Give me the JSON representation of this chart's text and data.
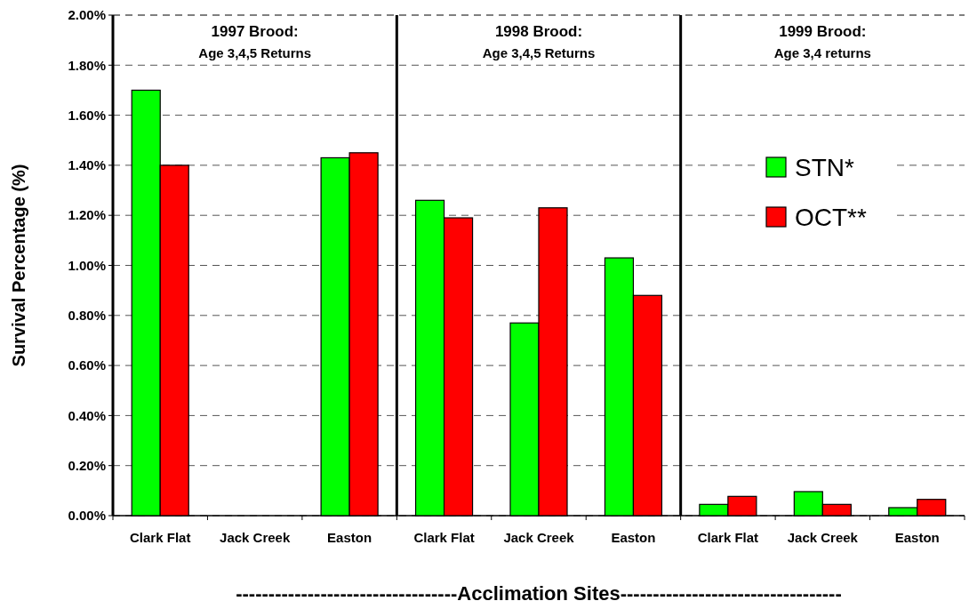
{
  "chart_data": {
    "type": "bar",
    "ylabel": "Survival Percentage (%)",
    "xlabel": "----------------------------------Acclimation Sites----------------------------------",
    "categories": [
      "Clark Flat",
      "Jack Creek",
      "Easton",
      "Clark Flat",
      "Jack Creek",
      "Easton",
      "Clark Flat",
      "Jack Creek",
      "Easton"
    ],
    "series": [
      {
        "name": "STN*",
        "color": "#00ff00",
        "values": [
          1.7,
          null,
          1.43,
          1.26,
          0.77,
          1.03,
          0.045,
          0.096,
          0.032
        ]
      },
      {
        "name": "OCT**",
        "color": "#ff0000",
        "values": [
          1.4,
          null,
          1.45,
          1.19,
          1.23,
          0.88,
          0.077,
          0.045,
          0.065
        ]
      }
    ],
    "ylim": [
      0,
      2
    ],
    "yticks": [
      {
        "value": 0,
        "label": "0.00%"
      },
      {
        "value": 0.2,
        "label": "0.20%"
      },
      {
        "value": 0.4,
        "label": "0.40%"
      },
      {
        "value": 0.6,
        "label": "0.60%"
      },
      {
        "value": 0.8,
        "label": "0.80%"
      },
      {
        "value": 1,
        "label": "1.00%"
      },
      {
        "value": 1.2,
        "label": "1.20%"
      },
      {
        "value": 1.4,
        "label": "1.40%"
      },
      {
        "value": 1.6,
        "label": "1.60%"
      },
      {
        "value": 1.8,
        "label": "1.80%"
      },
      {
        "value": 2,
        "label": "2.00%"
      }
    ],
    "grid": "y",
    "legend": "right",
    "annotations": [
      "1997 Brood:",
      "Age 3,4,5 Returns",
      "1998 Brood:",
      "Age 3,4,5 Returns",
      "1999 Brood:",
      "Age 3,4 returns"
    ]
  }
}
